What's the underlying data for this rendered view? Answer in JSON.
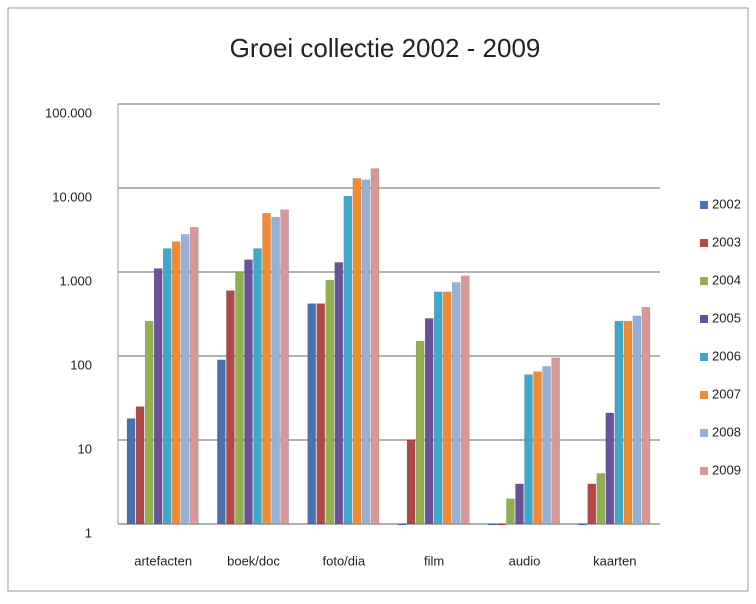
{
  "chart_data": {
    "type": "bar",
    "title": "Groei collectie 2002 - 2009",
    "categories": [
      "artefacten",
      "boek/doc",
      "foto/dia",
      "film",
      "audio",
      "kaarten"
    ],
    "series": [
      {
        "name": "2002",
        "color": "#4a70b0",
        "values": [
          18,
          90,
          420,
          1,
          1,
          1
        ]
      },
      {
        "name": "2003",
        "color": "#b04845",
        "values": [
          25,
          600,
          420,
          10,
          1,
          3
        ]
      },
      {
        "name": "2004",
        "color": "#92b050",
        "values": [
          260,
          1000,
          800,
          150,
          2,
          4
        ]
      },
      {
        "name": "2005",
        "color": "#6a529a",
        "values": [
          1100,
          1400,
          1300,
          280,
          3,
          21
        ]
      },
      {
        "name": "2006",
        "color": "#40a8c8",
        "values": [
          1900,
          1900,
          8000,
          580,
          60,
          260
        ]
      },
      {
        "name": "2007",
        "color": "#f08a35",
        "values": [
          2300,
          5000,
          13000,
          580,
          65,
          260
        ]
      },
      {
        "name": "2008",
        "color": "#98b0d8",
        "values": [
          2800,
          4500,
          12500,
          750,
          75,
          300
        ]
      },
      {
        "name": "2009",
        "color": "#d89898",
        "values": [
          3400,
          5500,
          17000,
          900,
          95,
          380
        ]
      }
    ],
    "log_scale": true,
    "grid": true,
    "legend": "right",
    "ylim": [
      1,
      100000
    ],
    "yticks": [
      1,
      10,
      100,
      {
        "value": 1000,
        "label": "1.000"
      },
      {
        "value": 10000,
        "label": "10.000"
      },
      {
        "value": 100000,
        "label": "100.000"
      }
    ]
  }
}
